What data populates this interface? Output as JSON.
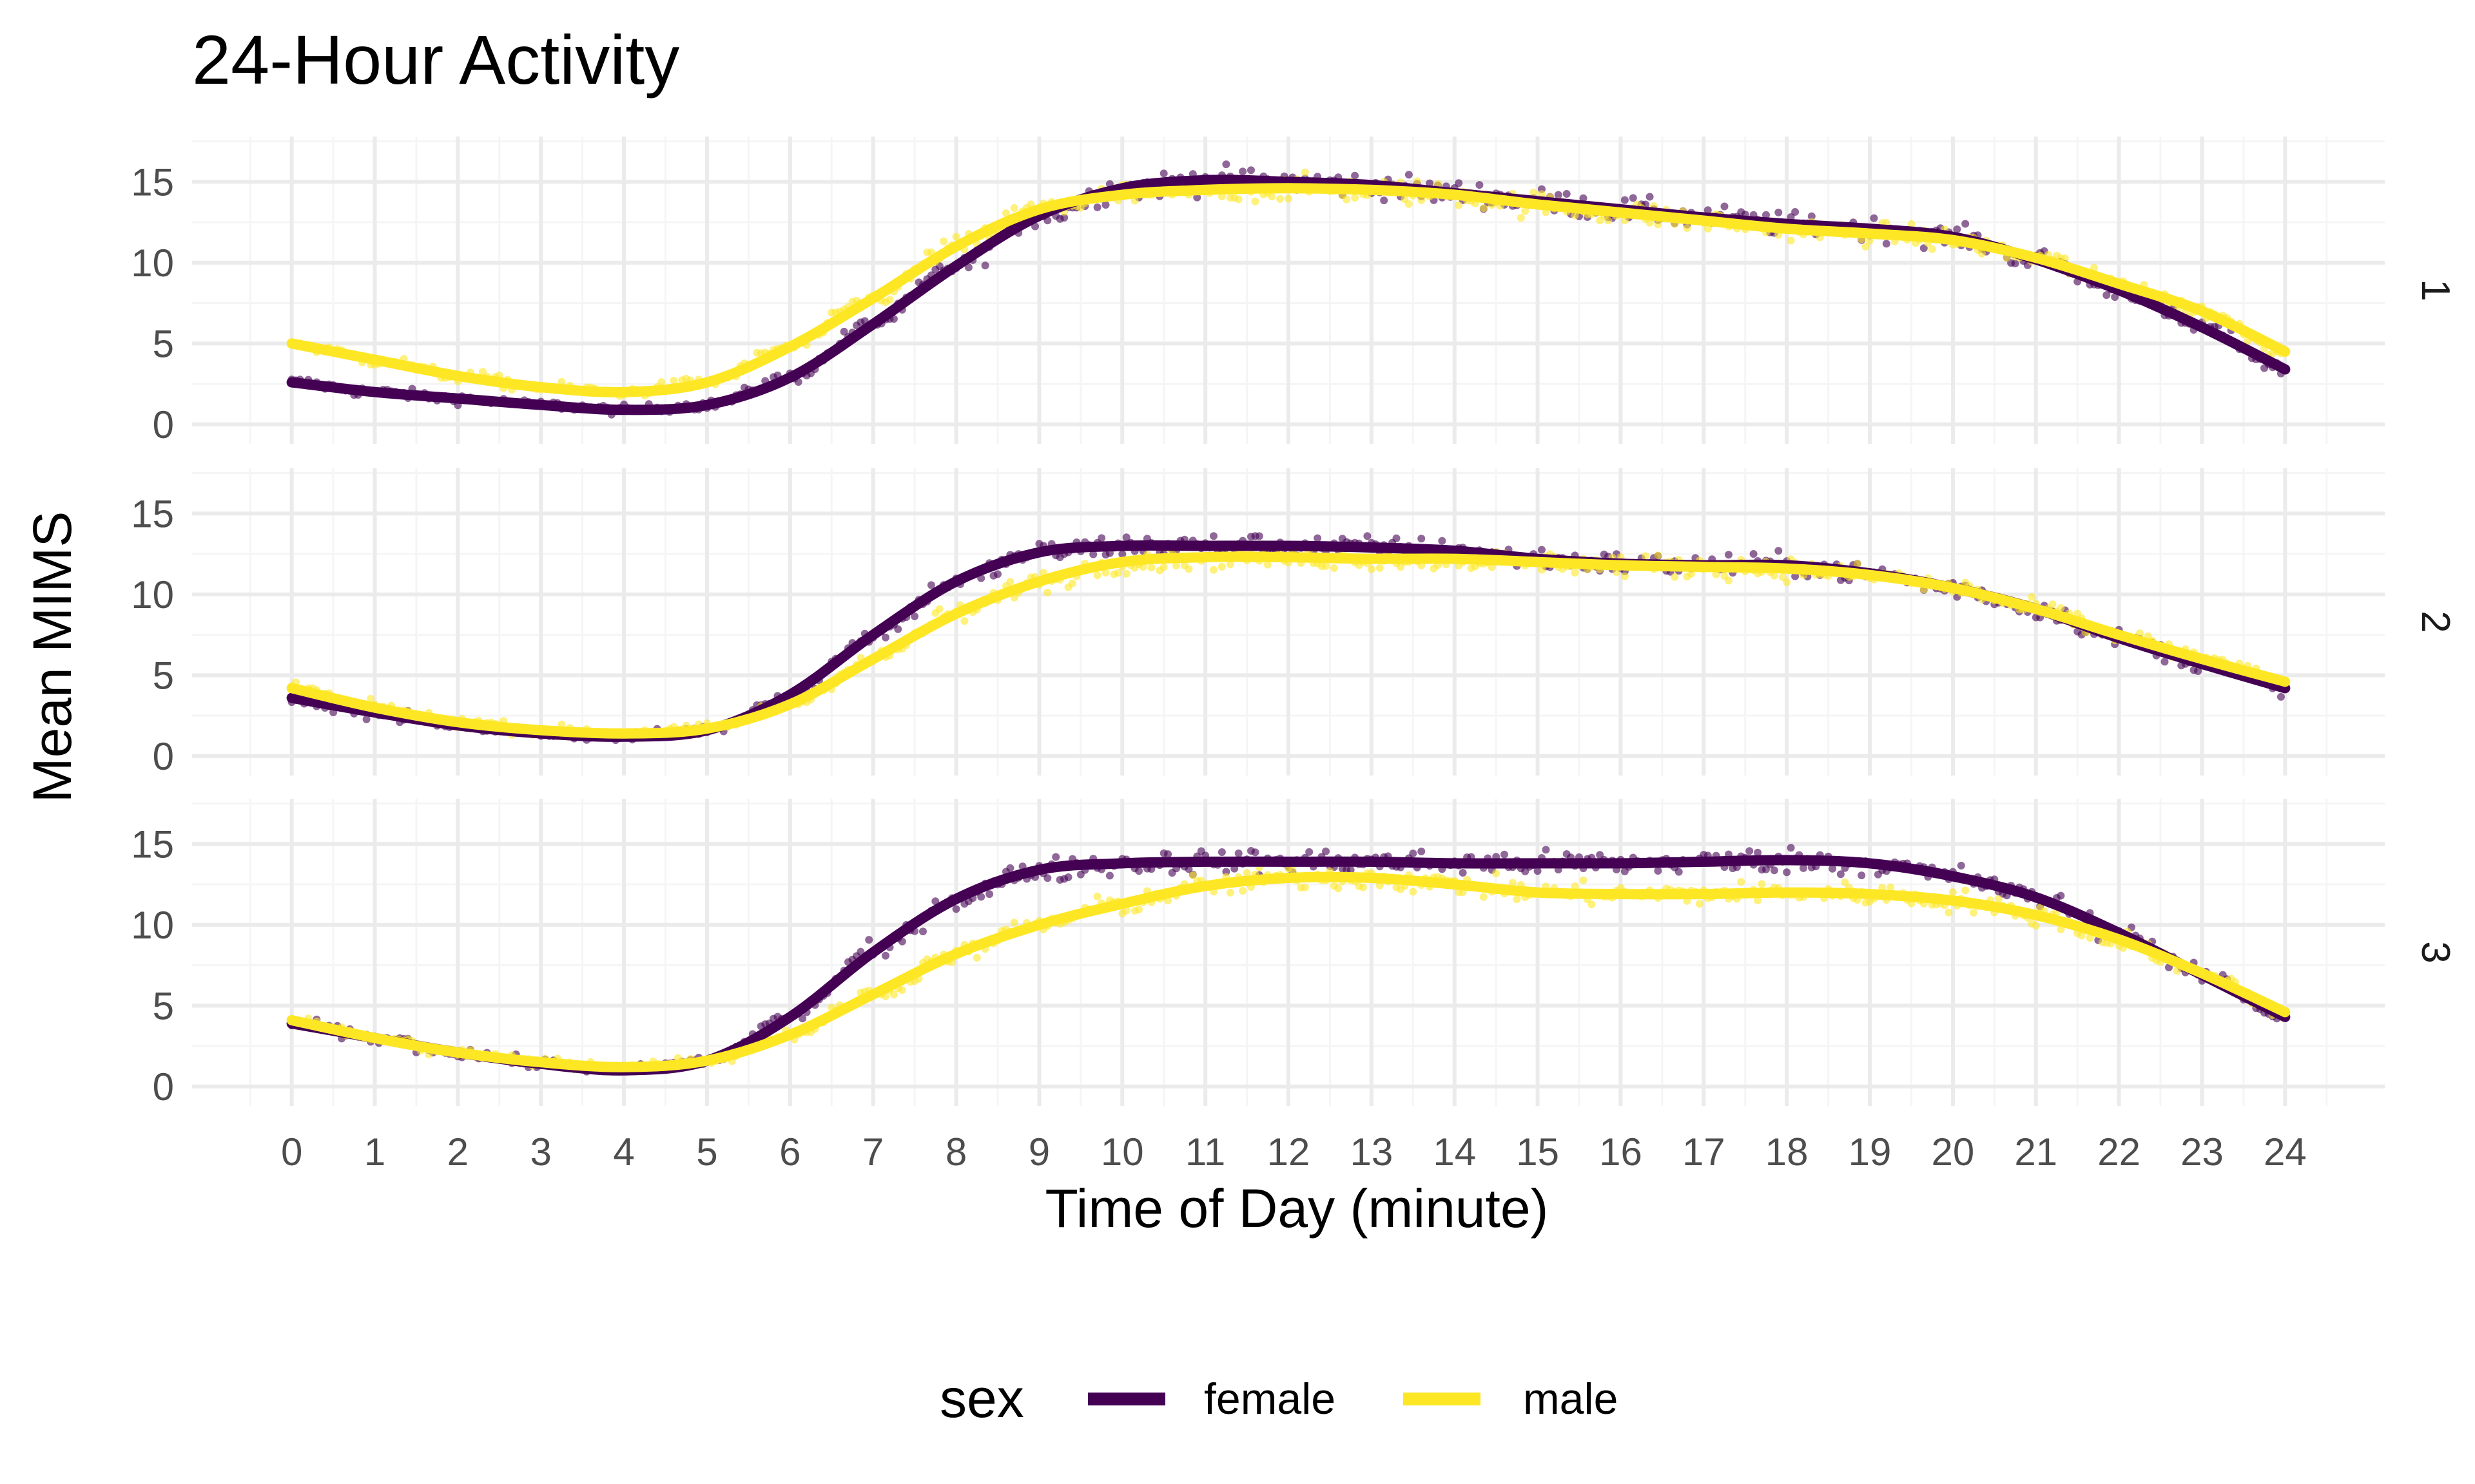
{
  "chart_data": {
    "type": "line",
    "title": "24-Hour Activity",
    "xlabel": "Time of Day (minute)",
    "ylabel": "Mean MIMS",
    "xlim": [
      -1.2,
      25.2
    ],
    "ylim": [
      -1.2,
      17.8
    ],
    "x_ticks": [
      0,
      1,
      2,
      3,
      4,
      5,
      6,
      7,
      8,
      9,
      10,
      11,
      12,
      13,
      14,
      15,
      16,
      17,
      18,
      19,
      20,
      21,
      22,
      23,
      24
    ],
    "x_tick_labels": [
      "0",
      "1",
      "2",
      "3",
      "4",
      "5",
      "6",
      "7",
      "8",
      "9",
      "10",
      "11",
      "12",
      "13",
      "14",
      "15",
      "16",
      "17",
      "18",
      "19",
      "20",
      "21",
      "22",
      "23",
      "24"
    ],
    "y_ticks": [
      0,
      5,
      10,
      15
    ],
    "y_tick_labels": [
      "0",
      "5",
      "10",
      "15"
    ],
    "grid": true,
    "legend": {
      "title": "sex",
      "position": "bottom"
    },
    "colors": {
      "female": "#440154",
      "male": "#FDE725",
      "grid_major": "#EBEBEB",
      "grid_minor": "#F5F5F5"
    },
    "layers": [
      "scatter (raw minute means)",
      "smooth line per sex"
    ],
    "facets": [
      {
        "label": "1",
        "series": [
          {
            "name": "female",
            "x": [
              0,
              1,
              2,
              3,
              4,
              5,
              6,
              7,
              8,
              9,
              10,
              11,
              12,
              13,
              14,
              15,
              16,
              17,
              18,
              19,
              20,
              21,
              22,
              23,
              24
            ],
            "values": [
              2.6,
              2.0,
              1.6,
              1.2,
              0.9,
              1.2,
              2.9,
              6.2,
              9.8,
              12.9,
              14.6,
              15.1,
              15.0,
              14.8,
              14.3,
              13.8,
              13.3,
              12.8,
              12.4,
              12.1,
              11.6,
              10.2,
              8.3,
              6.0,
              3.4
            ]
          },
          {
            "name": "male",
            "x": [
              0,
              1,
              2,
              3,
              4,
              5,
              6,
              7,
              8,
              9,
              10,
              11,
              12,
              13,
              14,
              15,
              16,
              17,
              18,
              19,
              20,
              21,
              22,
              23,
              24
            ],
            "values": [
              5.0,
              4.0,
              3.0,
              2.3,
              2.0,
              2.6,
              4.8,
              7.8,
              11.0,
              13.3,
              14.2,
              14.5,
              14.6,
              14.5,
              14.2,
              13.6,
              13.1,
              12.6,
              12.1,
              11.8,
              11.4,
              10.3,
              8.7,
              7.0,
              4.5
            ]
          }
        ]
      },
      {
        "label": "2",
        "series": [
          {
            "name": "female",
            "x": [
              0,
              1,
              2,
              3,
              4,
              5,
              6,
              7,
              8,
              9,
              10,
              11,
              12,
              13,
              14,
              15,
              16,
              17,
              18,
              19,
              20,
              21,
              22,
              23,
              24
            ],
            "values": [
              3.6,
              2.7,
              1.9,
              1.4,
              1.2,
              1.6,
              3.8,
              7.5,
              10.8,
              12.6,
              13.0,
              13.0,
              13.0,
              12.9,
              12.7,
              12.2,
              11.9,
              11.8,
              11.8,
              11.3,
              10.4,
              9.1,
              7.3,
              5.7,
              4.2
            ]
          },
          {
            "name": "male",
            "x": [
              0,
              1,
              2,
              3,
              4,
              5,
              6,
              7,
              8,
              9,
              10,
              11,
              12,
              13,
              14,
              15,
              16,
              17,
              18,
              19,
              20,
              21,
              22,
              23,
              24
            ],
            "values": [
              4.2,
              3.0,
              2.1,
              1.6,
              1.4,
              1.7,
              3.2,
              6.0,
              8.8,
              10.8,
              12.0,
              12.3,
              12.3,
              12.2,
              12.2,
              12.0,
              11.8,
              11.7,
              11.6,
              11.2,
              10.4,
              9.1,
              7.5,
              6.0,
              4.6
            ]
          }
        ]
      },
      {
        "label": "3",
        "series": [
          {
            "name": "female",
            "x": [
              0,
              1,
              2,
              3,
              4,
              5,
              6,
              7,
              8,
              9,
              10,
              11,
              12,
              13,
              14,
              15,
              16,
              17,
              18,
              19,
              20,
              21,
              22,
              23,
              24
            ],
            "values": [
              3.9,
              3.0,
              2.1,
              1.4,
              1.0,
              1.6,
              4.3,
              8.3,
              11.6,
              13.4,
              13.8,
              13.9,
              13.9,
              13.9,
              13.8,
              13.8,
              13.8,
              13.9,
              14.0,
              13.8,
              13.0,
              11.7,
              9.5,
              6.9,
              4.3
            ]
          },
          {
            "name": "male",
            "x": [
              0,
              1,
              2,
              3,
              4,
              5,
              6,
              7,
              8,
              9,
              10,
              11,
              12,
              13,
              14,
              15,
              16,
              17,
              18,
              19,
              20,
              21,
              22,
              23,
              24
            ],
            "values": [
              4.1,
              3.0,
              2.1,
              1.5,
              1.2,
              1.6,
              3.2,
              5.7,
              8.2,
              10.0,
              11.3,
              12.4,
              12.9,
              12.9,
              12.5,
              12.0,
              11.9,
              11.9,
              12.0,
              11.9,
              11.5,
              10.6,
              9.1,
              7.0,
              4.6
            ]
          }
        ]
      }
    ]
  }
}
